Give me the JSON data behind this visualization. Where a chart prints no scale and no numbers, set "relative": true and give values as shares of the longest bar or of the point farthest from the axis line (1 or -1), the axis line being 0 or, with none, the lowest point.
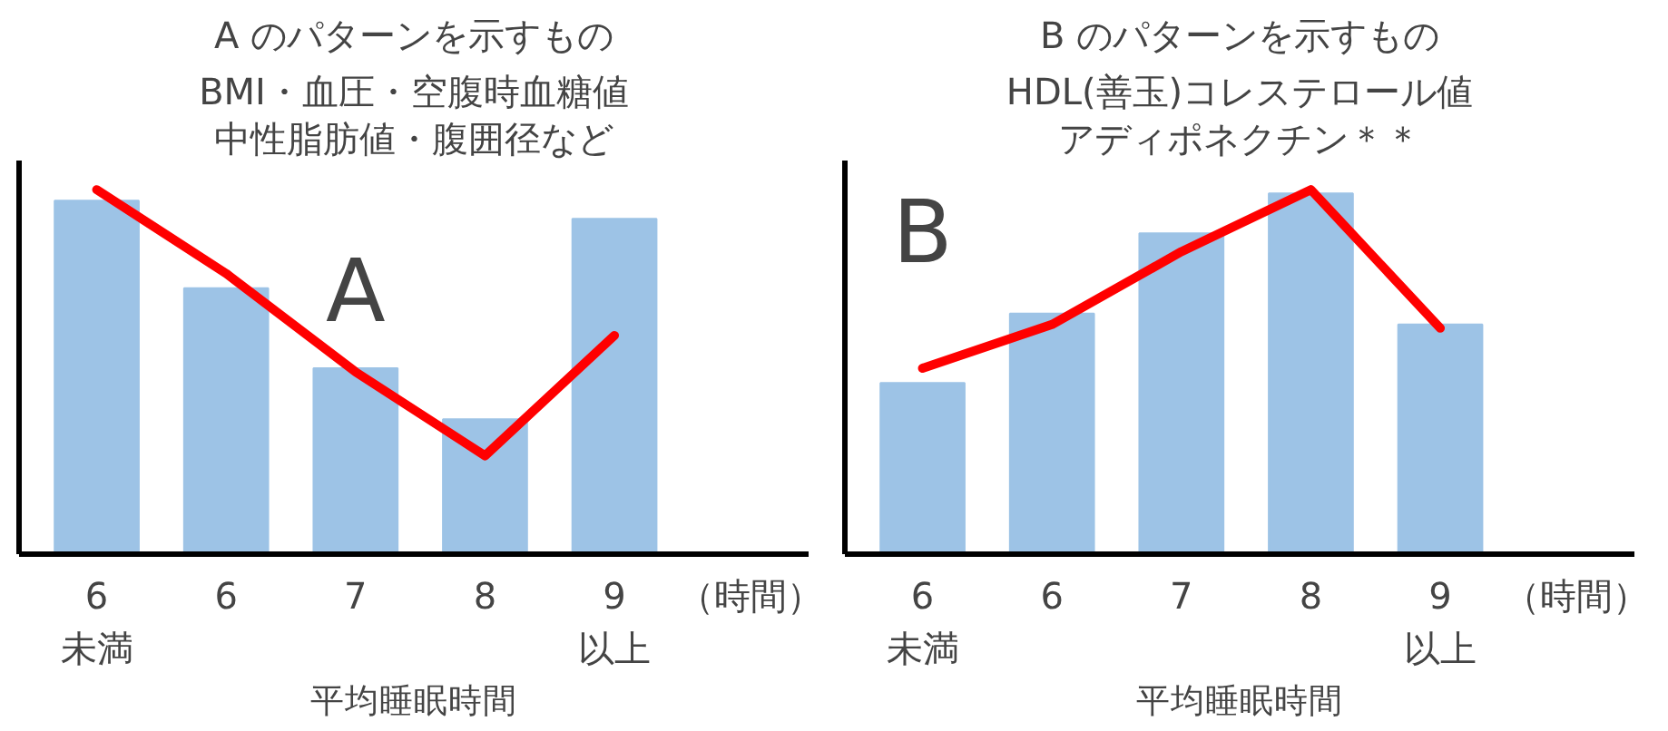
{
  "chart_data": [
    {
      "type": "bar",
      "title": "A のパターンを示すもの",
      "subtitle": "BMI・血圧・空腹時血糖値",
      "xlabel": "平均睡眠時間",
      "categories": [
        "6\n未満",
        "6",
        "7",
        "8",
        "9\n以上"
      ],
      "relative": true,
      "tick_labels": "x",
      "series": [
        {
          "type": "bar",
          "color": "#9dc3e6",
          "values": [
            0.97,
            0.73,
            0.51,
            0.37,
            0.92
          ]
        },
        {
          "type": "line",
          "color": "#ff0000",
          "values": [
            1.0,
            0.77,
            0.5,
            0.27,
            0.6
          ]
        }
      ],
      "annotations": [
        "中性脂肪値・腹囲径など",
        "A",
        "（時間）"
      ]
    },
    {
      "type": "bar",
      "title": "B のパターンを示すもの",
      "subtitle": "HDL(善玉)コレステロール値",
      "xlabel": "平均睡眠時間",
      "categories": [
        "6\n未満",
        "6",
        "7",
        "8",
        "9\n以上"
      ],
      "relative": true,
      "tick_labels": "x",
      "series": [
        {
          "type": "bar",
          "color": "#9dc3e6",
          "values": [
            0.47,
            0.66,
            0.88,
            0.99,
            0.63
          ]
        },
        {
          "type": "line",
          "color": "#ff0000",
          "values": [
            0.51,
            0.63,
            0.83,
            1.0,
            0.62
          ]
        }
      ],
      "annotations": [
        "アディポネクチン＊＊",
        "B",
        "（時間）"
      ]
    }
  ]
}
